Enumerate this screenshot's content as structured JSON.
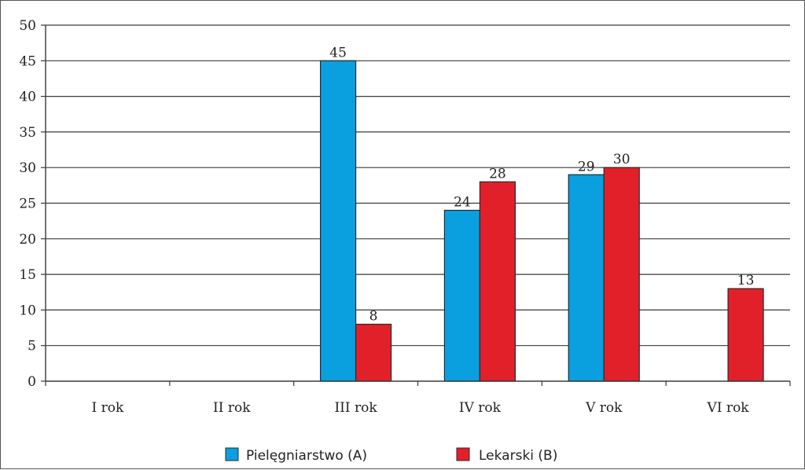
{
  "chart_data": {
    "type": "bar",
    "categories": [
      "I rok",
      "II rok",
      "III rok",
      "IV rok",
      "V rok",
      "VI rok"
    ],
    "series": [
      {
        "name": "Pielęgniarstwo (A)",
        "color": "#0a9fdf",
        "values": [
          null,
          null,
          45,
          24,
          29,
          null
        ]
      },
      {
        "name": "Lekarski (B)",
        "color": "#e2202a",
        "values": [
          null,
          null,
          8,
          28,
          30,
          13
        ]
      }
    ],
    "ylim": [
      0,
      50
    ],
    "yticks": [
      0,
      5,
      10,
      15,
      20,
      25,
      30,
      35,
      40,
      45,
      50
    ],
    "grid": true,
    "legend_position": "bottom-center",
    "title": "",
    "xlabel": "",
    "ylabel": ""
  }
}
